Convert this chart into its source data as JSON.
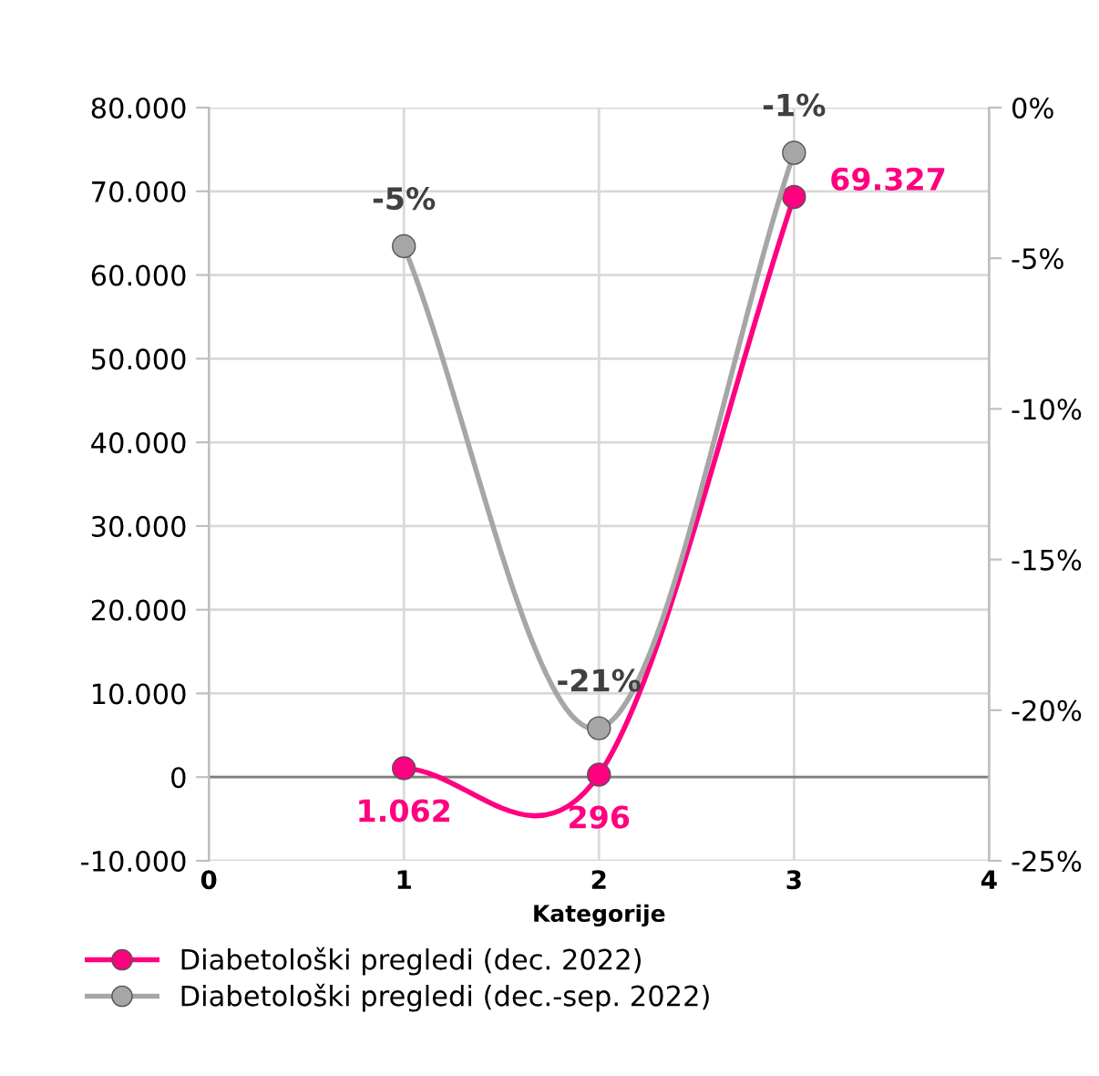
{
  "chart_data": {
    "type": "line",
    "xlabel": "Kategorije",
    "x": [
      1,
      2,
      3
    ],
    "series": [
      {
        "name": "Diabetološki pregledi (dec. 2022)",
        "color": "#ff0080",
        "values": [
          1062,
          296,
          69327
        ],
        "value_labels": [
          "1.062",
          "296",
          "69.327"
        ]
      },
      {
        "name": "Diabetološki pregledi (dec.-sep. 2022)",
        "color": "#a6a6a6",
        "axis": "y2",
        "values": [
          -4.6,
          -20.6,
          -1.5
        ],
        "value_labels": [
          "-5%",
          "-21%",
          "-1%"
        ]
      }
    ],
    "xlim": [
      0,
      4
    ],
    "xticks": [
      0,
      1,
      2,
      3,
      4
    ],
    "ylim": [
      -10000,
      80000
    ],
    "yticks": [
      {
        "value": -10000,
        "label": "-10.000"
      },
      {
        "value": 0,
        "label": "0"
      },
      {
        "value": 10000,
        "label": "10.000"
      },
      {
        "value": 20000,
        "label": "20.000"
      },
      {
        "value": 30000,
        "label": "30.000"
      },
      {
        "value": 40000,
        "label": "40.000"
      },
      {
        "value": 50000,
        "label": "50.000"
      },
      {
        "value": 60000,
        "label": "60.000"
      },
      {
        "value": 70000,
        "label": "70.000"
      },
      {
        "value": 80000,
        "label": "80.000"
      }
    ],
    "y2lim": [
      -25,
      0
    ],
    "y2ticks": [
      {
        "value": -25,
        "label": "-25%"
      },
      {
        "value": -20,
        "label": "-20%"
      },
      {
        "value": -15,
        "label": "-15%"
      },
      {
        "value": -10,
        "label": "-10%"
      },
      {
        "value": -5,
        "label": "-5%"
      },
      {
        "value": 0,
        "label": "0%"
      }
    ],
    "ref_lines": [
      {
        "axis": "y",
        "value": 0,
        "color": "#7f7f7f"
      }
    ],
    "grid": true,
    "legend": "bottom",
    "marker": "circle",
    "line_style": "solid"
  }
}
